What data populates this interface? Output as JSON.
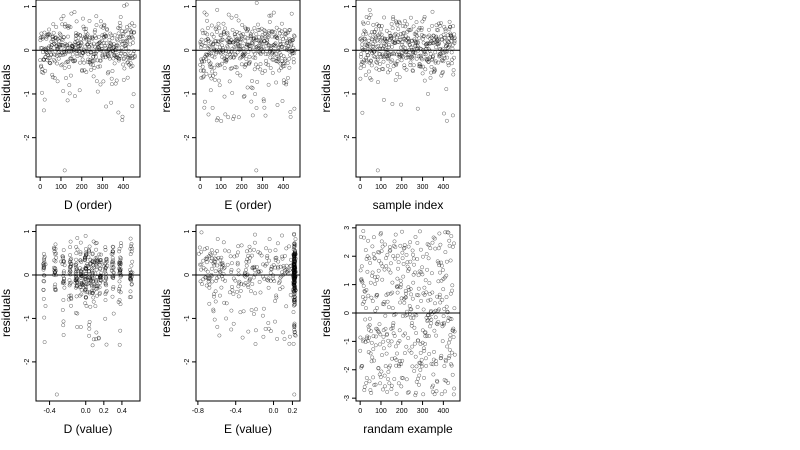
{
  "chart_data": [
    {
      "type": "scatter",
      "xlabel": "D (order)",
      "ylabel": "residuals",
      "xlim": [
        -20,
        480
      ],
      "ylim": [
        -2.9,
        1.15
      ],
      "xticks": [
        0,
        100,
        200,
        300,
        400
      ],
      "yticks": [
        1,
        0,
        -1,
        -2
      ],
      "x_distribution": "index",
      "y_spec": {
        "seed": 11,
        "n": 456,
        "center": 0.08,
        "spread": 0.32,
        "tail": -1.35,
        "tail_frac": 0.06
      },
      "outliers": [
        [
          118,
          -2.75
        ]
      ],
      "hline": 0
    },
    {
      "type": "scatter",
      "xlabel": "E (order)",
      "ylabel": "residuals",
      "xlim": [
        -20,
        480
      ],
      "ylim": [
        -2.9,
        1.15
      ],
      "xticks": [
        0,
        100,
        200,
        300,
        400
      ],
      "yticks": [
        1,
        0,
        -1,
        -2
      ],
      "x_distribution": "index",
      "y_spec": {
        "seed": 23,
        "n": 456,
        "center": 0.08,
        "spread": 0.32,
        "tail": -1.35,
        "tail_frac": 0.06
      },
      "outliers": [
        [
          270,
          -2.75
        ]
      ],
      "hline": 0
    },
    {
      "type": "scatter",
      "xlabel": "sample index",
      "ylabel": "residuals",
      "xlim": [
        -20,
        480
      ],
      "ylim": [
        -2.9,
        1.15
      ],
      "xticks": [
        0,
        100,
        200,
        300,
        400
      ],
      "yticks": [
        1,
        0,
        -1,
        -2
      ],
      "x_distribution": "index",
      "y_spec": {
        "seed": 37,
        "n": 456,
        "center": 0.08,
        "spread": 0.32,
        "tail": -1.35,
        "tail_frac": 0.06
      },
      "outliers": [
        [
          85,
          -2.75
        ]
      ],
      "hline": 0
    },
    {
      "type": "scatter",
      "xlabel": "D (value)",
      "ylabel": "residuals",
      "xlim": [
        -0.55,
        0.6
      ],
      "ylim": [
        -2.9,
        1.15
      ],
      "xticks": [
        -0.4,
        0.0,
        0.2,
        0.4
      ],
      "xtick_labels": [
        "-0.4",
        "0.0",
        "0.2",
        "0.4"
      ],
      "yticks": [
        1,
        0,
        -1,
        -2
      ],
      "x_distribution": "clustered",
      "x_clusters": [
        -0.46,
        -0.34,
        -0.25,
        -0.17,
        -0.1,
        -0.05,
        0.0,
        0.04,
        0.08,
        0.12,
        0.16,
        0.22,
        0.3,
        0.38,
        0.5
      ],
      "y_spec": {
        "seed": 51,
        "n": 456,
        "center": 0.08,
        "spread": 0.32,
        "tail": -1.35,
        "tail_frac": 0.06
      },
      "outliers": [
        [
          -0.32,
          -2.75
        ]
      ],
      "hline": 0
    },
    {
      "type": "scatter",
      "xlabel": "E (value)",
      "ylabel": "residuals",
      "xlim": [
        -0.82,
        0.28
      ],
      "ylim": [
        -2.9,
        1.15
      ],
      "xticks": [
        -0.8,
        -0.4,
        0.0,
        0.2
      ],
      "xtick_labels": [
        "-0.8",
        "-0.4",
        "0.0",
        "0.2"
      ],
      "yticks": [
        1,
        0,
        -1,
        -2
      ],
      "x_distribution": "skewed",
      "x_mass_point": 0.22,
      "x_mass_frac": 0.45,
      "y_spec": {
        "seed": 67,
        "n": 456,
        "center": 0.08,
        "spread": 0.32,
        "tail": -1.35,
        "tail_frac": 0.06
      },
      "outliers": [
        [
          0.22,
          -2.75
        ]
      ],
      "hline": 0
    },
    {
      "type": "scatter",
      "xlabel": "randam example",
      "ylabel": "residuals",
      "xlim": [
        -20,
        480
      ],
      "ylim": [
        -3.1,
        3.1
      ],
      "xticks": [
        0,
        100,
        200,
        300,
        400
      ],
      "yticks": [
        3,
        2,
        1,
        0,
        -1,
        -2,
        -3
      ],
      "x_distribution": "index",
      "y_spec": {
        "seed": 89,
        "n": 456,
        "uniform": [
          -2.9,
          2.9
        ]
      },
      "outliers": [],
      "hline": 0
    }
  ]
}
